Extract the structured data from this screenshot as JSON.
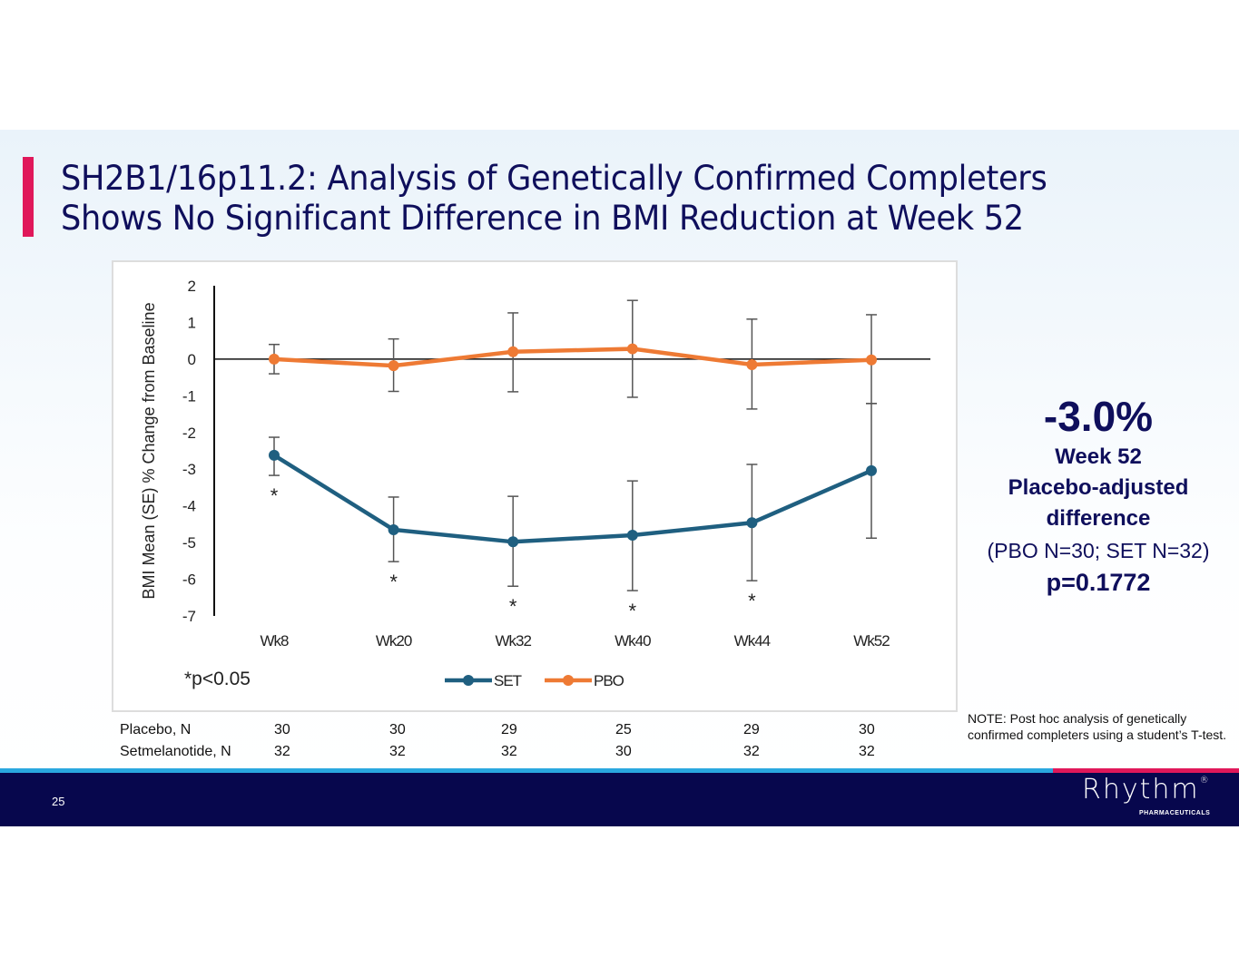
{
  "title_lines": [
    "SH2B1/16p11.2: Analysis of Genetically Confirmed Completers",
    "Shows No Significant Difference in BMI Reduction at Week 52"
  ],
  "chart_data": {
    "type": "line",
    "ylabel": "BMI Mean (SE) % Change from Baseline",
    "ylim": [
      -7,
      2
    ],
    "yticks": [
      2,
      1,
      0,
      -1,
      -2,
      -3,
      -4,
      -5,
      -6,
      -7
    ],
    "categories": [
      "Wk8",
      "Wk20",
      "Wk32",
      "Wk40",
      "Wk44",
      "Wk52"
    ],
    "series": [
      {
        "name": "SET",
        "color": "#1f5f80",
        "values": [
          -2.62,
          -4.65,
          -4.98,
          -4.8,
          -4.46,
          -3.04
        ],
        "upper": [
          -2.13,
          -3.76,
          -3.74,
          -3.32,
          -2.87,
          -1.21
        ],
        "lower": [
          -3.17,
          -5.52,
          -6.19,
          -6.31,
          -6.04,
          -4.88
        ]
      },
      {
        "name": "PBO",
        "color": "#ee7a34",
        "values": [
          0,
          -0.18,
          0.2,
          0.28,
          -0.15,
          -0.02
        ],
        "upper": [
          0.4,
          0.55,
          1.26,
          1.6,
          1.09,
          1.21
        ],
        "lower": [
          -0.4,
          -0.88,
          -0.89,
          -1.04,
          -1.36,
          -1.21
        ]
      }
    ],
    "significant": [
      true,
      true,
      true,
      true,
      true,
      false
    ],
    "significance_marker": "*",
    "footnote": "*p<0.05",
    "legend_position": "bottom",
    "grid": false
  },
  "n_table": {
    "rows": [
      {
        "label": "Placebo, N",
        "values": [
          "30",
          "30",
          "29",
          "25",
          "29",
          "30"
        ]
      },
      {
        "label": "Setmelanotide, N",
        "values": [
          "32",
          "32",
          "32",
          "30",
          "32",
          "32"
        ]
      }
    ]
  },
  "callout": {
    "value": "-3.0%",
    "line1": "Week 52",
    "line2": "Placebo-adjusted",
    "line3": "difference",
    "line4": "(PBO N=30; SET N=32)",
    "pvalue": "p=0.1772"
  },
  "note": "NOTE: Post hoc analysis of genetically confirmed completers using a student’s T-test.",
  "footer": {
    "page_number": "25",
    "logo": "Rhythm",
    "logo_sub": "PHARMACEUTICALS"
  },
  "colors": {
    "accent": "#e0185a",
    "navy": "#07074d",
    "set": "#1f5f80",
    "pbo": "#ee7a34"
  }
}
